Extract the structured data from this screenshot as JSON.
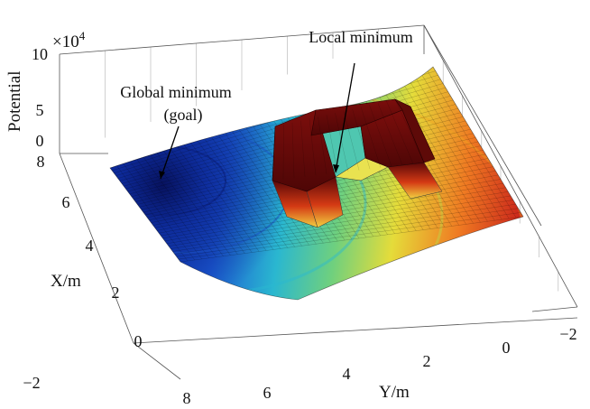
{
  "chart_data": {
    "type": "surface",
    "zlabel": "Potential",
    "zscale_label": "×10",
    "zscale_exponent": "4",
    "xlabel": "X/m",
    "ylabel": "Y/m",
    "x_ticks": [
      "−2",
      "0",
      "2",
      "4",
      "6",
      "8"
    ],
    "y_ticks": [
      "8",
      "6",
      "4",
      "2",
      "0",
      "−2"
    ],
    "z_ticks": [
      "0",
      "5",
      "10"
    ],
    "x_range": [
      -2,
      8
    ],
    "y_range": [
      -2,
      8
    ],
    "z_range": [
      0,
      10
    ],
    "annotations": [
      {
        "id": "global",
        "lines": [
          "Global minimum",
          "(goal)"
        ],
        "x": 6.5,
        "y": 6.5
      },
      {
        "id": "local",
        "lines": [
          "Local minimum"
        ],
        "x": 5.5,
        "y": 2.8
      }
    ],
    "obstacle": "U-shaped, open toward the goal",
    "colormap": "jet",
    "grid": true
  }
}
